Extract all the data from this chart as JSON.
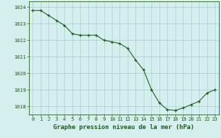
{
  "x": [
    0,
    1,
    2,
    3,
    4,
    5,
    6,
    7,
    8,
    9,
    10,
    11,
    12,
    13,
    14,
    15,
    16,
    17,
    18,
    19,
    20,
    21,
    22,
    23
  ],
  "y": [
    1023.8,
    1023.8,
    1023.5,
    1023.2,
    1022.9,
    1022.4,
    1022.3,
    1022.3,
    1022.3,
    1022.0,
    1021.9,
    1021.8,
    1021.5,
    1020.8,
    1020.2,
    1019.0,
    1018.2,
    1017.8,
    1017.75,
    1017.9,
    1018.1,
    1018.3,
    1018.8,
    1019.0
  ],
  "line_color": "#1a5c1a",
  "marker_color": "#1a5c1a",
  "bg_color": "#d5eeee",
  "grid_color": "#aacccc",
  "title": "Graphe pression niveau de la mer (hPa)",
  "ylim": [
    1017.5,
    1024.35
  ],
  "xlim": [
    -0.5,
    23.5
  ],
  "yticks": [
    1018,
    1019,
    1020,
    1021,
    1022,
    1023,
    1024
  ],
  "xticks": [
    0,
    1,
    2,
    3,
    4,
    5,
    6,
    7,
    8,
    9,
    10,
    11,
    12,
    13,
    14,
    15,
    16,
    17,
    18,
    19,
    20,
    21,
    22,
    23
  ],
  "tick_fontsize": 5.2,
  "title_fontsize": 6.5,
  "title_fontweight": "bold"
}
